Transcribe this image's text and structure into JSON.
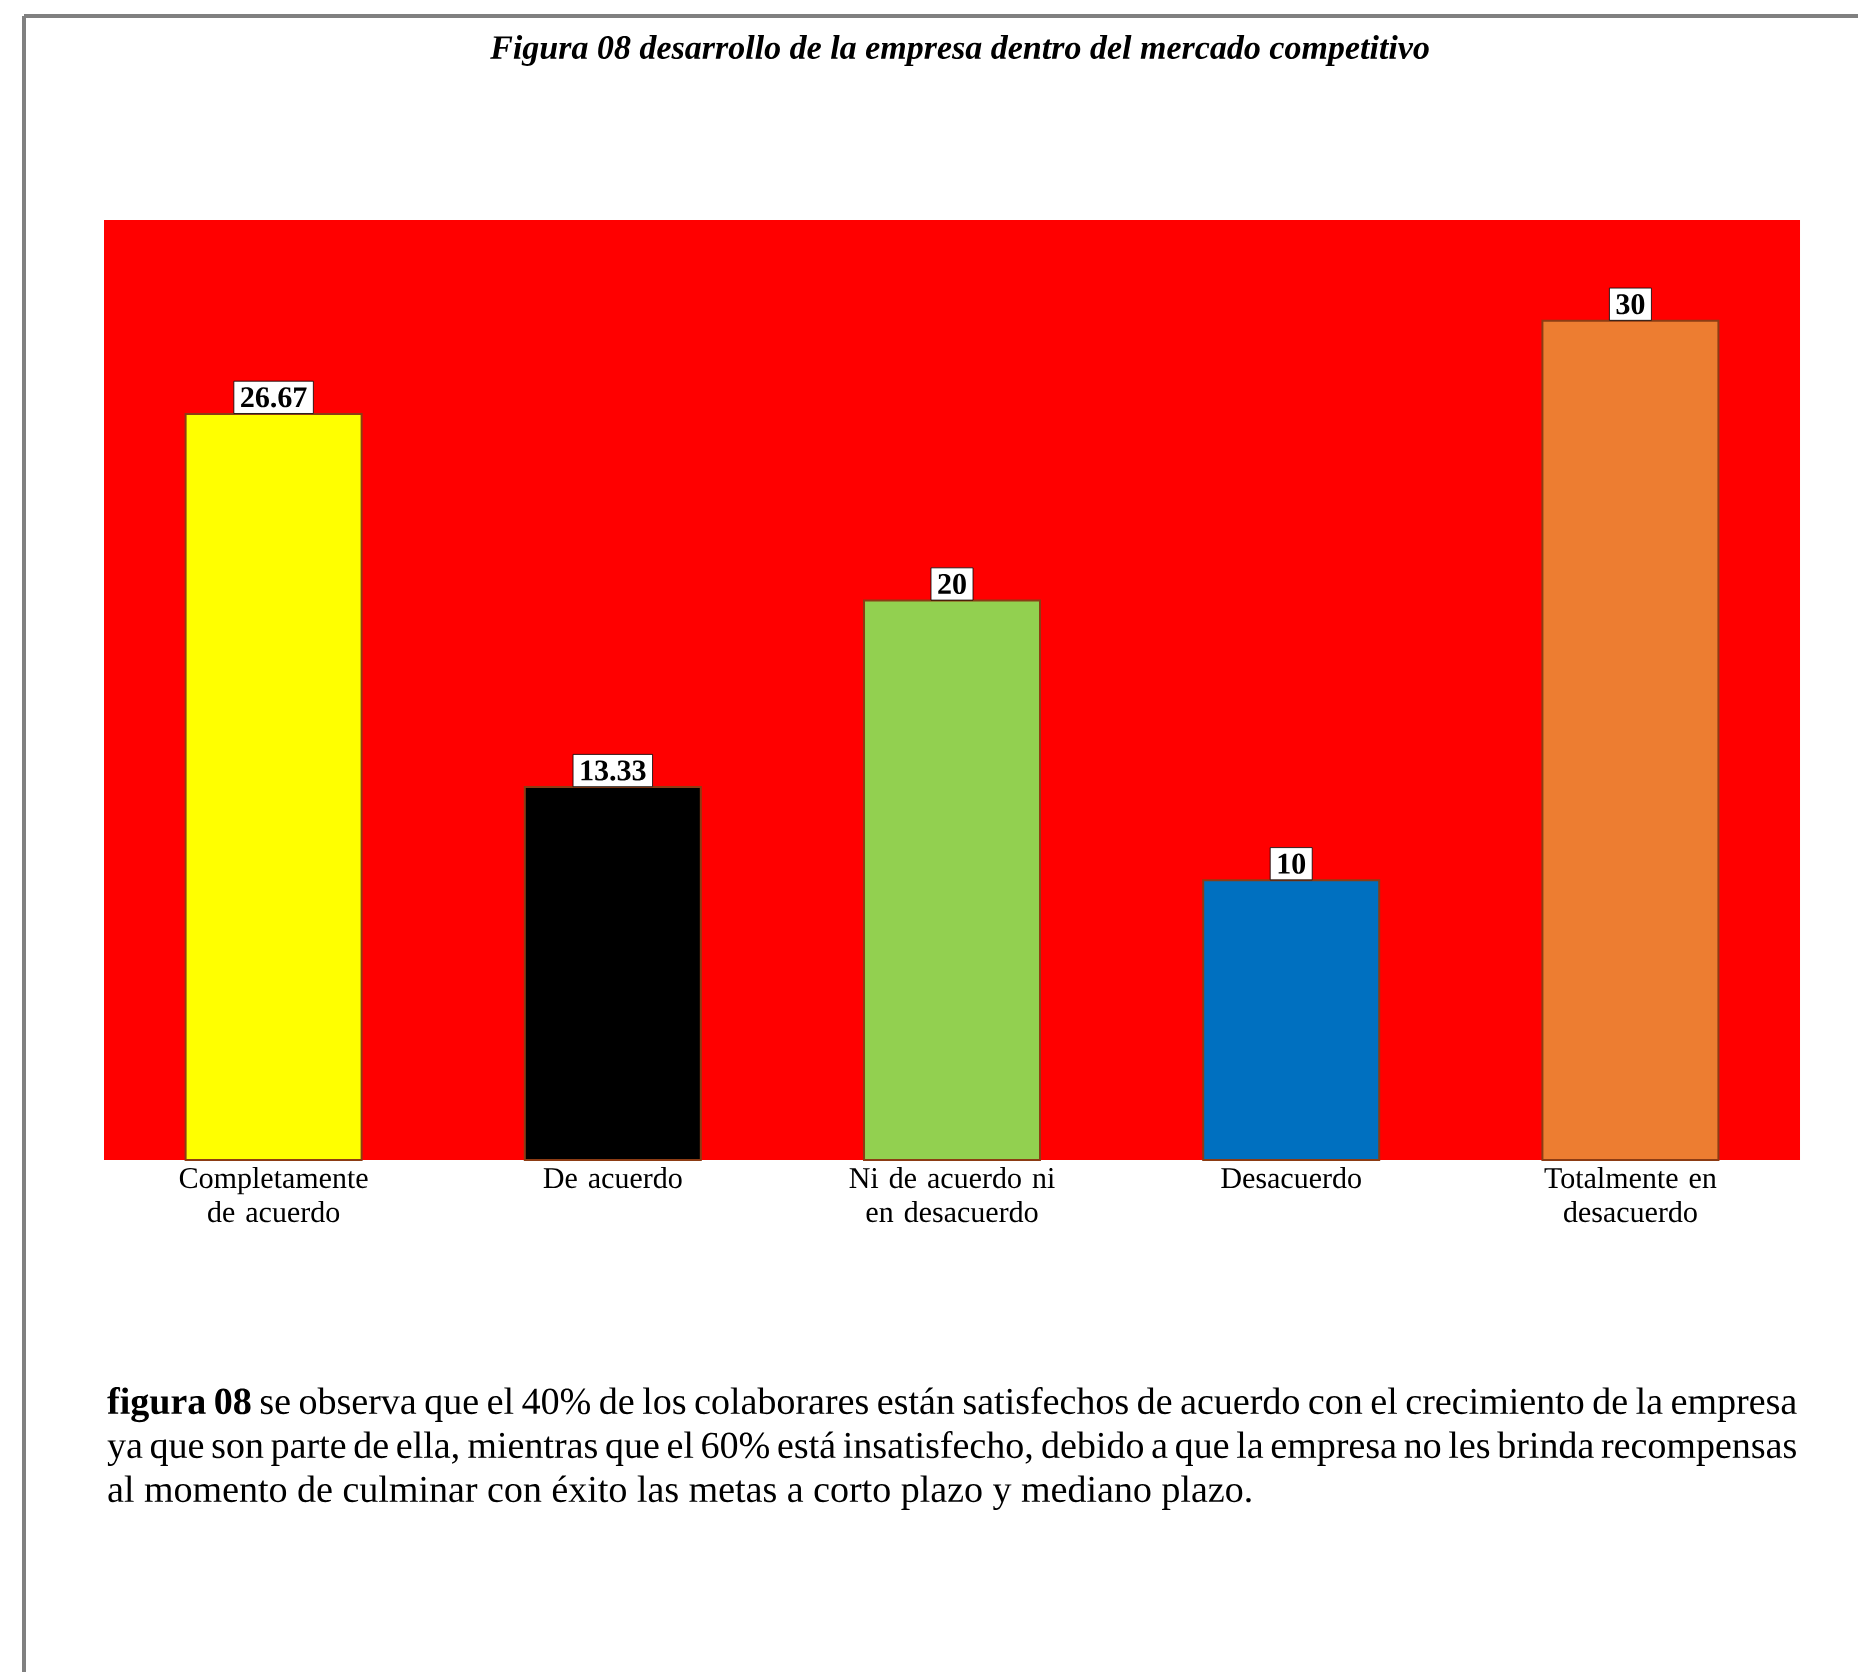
{
  "chart_data": {
    "type": "bar",
    "title": "Figura 08 desarrollo de la empresa dentro del mercado competitivo",
    "categories": [
      "Completamente de acuerdo",
      "De acuerdo",
      "Ni de acuerdo ni en desacuerdo",
      "Desacuerdo",
      "Totalmente en desacuerdo"
    ],
    "values": [
      26.67,
      13.33,
      20,
      10,
      30
    ],
    "colors": [
      "#ffff00",
      "#000000",
      "#92d050",
      "#0070c0",
      "#ed7d31"
    ],
    "data_labels": true,
    "tick_labels": "x",
    "annotations": [
      "**figura 08** se observa que el 40% de los colaborares están satisfechos de acuerdo con el crecimiento de la empresa ya que son parte de ella, mientras que el 60% está insatisfecho, debido a que la empresa no les brinda recompensas al momento de culminar con éxito las metas a corto plazo y mediano plazo."
    ]
  }
}
